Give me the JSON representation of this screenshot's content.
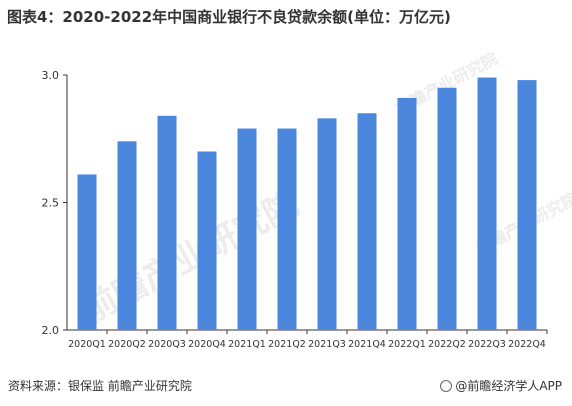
{
  "title": "图表4：2020-2022年中国商业银行不良贷款余额(单位：万亿元)",
  "source": "资料来源：银保监 前瞻产业研究院",
  "brand": "@前瞻经济学人APP",
  "watermark": "前瞻产业研究院",
  "colors": {
    "bar": "#4a87dd",
    "axis": "#333333"
  },
  "chart_data": {
    "type": "bar",
    "title": "图表4：2020-2022年中国商业银行不良贷款余额(单位：万亿元)",
    "categories": [
      "2020Q1",
      "2020Q2",
      "2020Q3",
      "2020Q4",
      "2021Q1",
      "2021Q2",
      "2021Q3",
      "2021Q4",
      "2022Q1",
      "2022Q2",
      "2022Q3",
      "2022Q4"
    ],
    "values": [
      2.61,
      2.74,
      2.84,
      2.7,
      2.79,
      2.79,
      2.83,
      2.85,
      2.91,
      2.95,
      2.99,
      2.98
    ],
    "ylim": [
      2.0,
      3.0
    ],
    "yticks": [
      "2.0",
      "2.5",
      "3.0"
    ],
    "xlabel": "",
    "ylabel": "",
    "grid": false
  }
}
